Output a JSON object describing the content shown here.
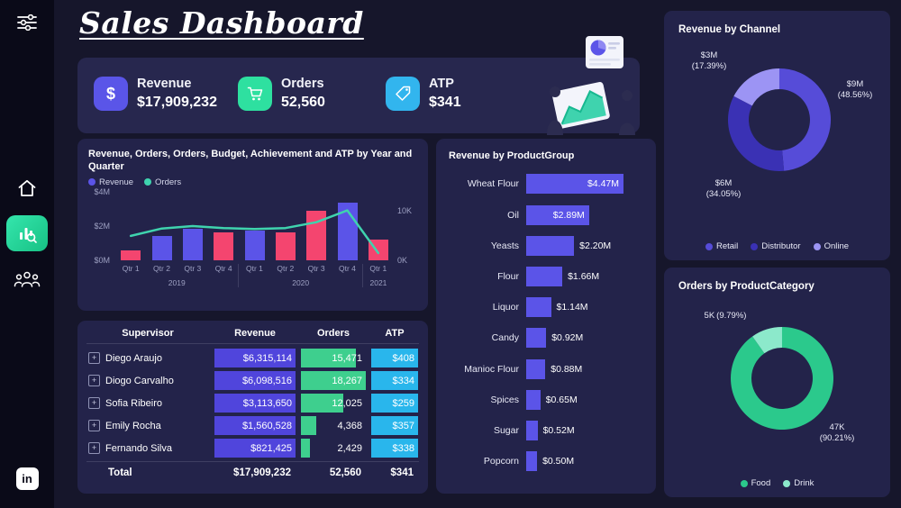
{
  "app": {
    "background": "#16162b",
    "panel": "#23234a",
    "sidebar": "#0a0a18",
    "accent_green": "#2ee0a0"
  },
  "sidebar": {
    "icons": [
      {
        "name": "filter-icon"
      },
      {
        "name": "home-icon"
      },
      {
        "name": "analytics-icon",
        "active": true
      },
      {
        "name": "users-icon"
      },
      {
        "name": "linkedin-icon",
        "label": "in"
      }
    ]
  },
  "header": {
    "title": "Sales Dashboard"
  },
  "kpis": [
    {
      "label": "Revenue",
      "value": "$17,909,232",
      "icon": "dollar-icon",
      "color": "#5a55e8"
    },
    {
      "label": "Orders",
      "value": "52,560",
      "icon": "cart-icon",
      "color": "#2ee0a0"
    },
    {
      "label": "ATP",
      "value": "$341",
      "icon": "tag-icon",
      "color": "#32b5ee"
    }
  ],
  "chart_data": [
    {
      "type": "bar",
      "subtype": "combo-bar-line",
      "title": "Revenue, Orders, Orders, Budget, Achievement and ATP by Year and Quarter",
      "categories": [
        "Qtr 1",
        "Qtr 2",
        "Qtr 3",
        "Qtr 4",
        "Qtr 1",
        "Qtr 2",
        "Qtr 3",
        "Qtr 4",
        "Qtr 1"
      ],
      "year_groups": [
        {
          "label": "2019",
          "span": 4
        },
        {
          "label": "2020",
          "span": 4
        },
        {
          "label": "2021",
          "span": 1
        }
      ],
      "series": [
        {
          "name": "Revenue",
          "type": "bar",
          "axis": "left",
          "unit": "$M",
          "legend_color": "#5b54e8",
          "values": [
            0.55,
            1.4,
            1.85,
            1.6,
            1.7,
            1.6,
            2.9,
            3.35,
            1.2
          ],
          "bar_colors": [
            "#f4456f",
            "#5b54e8",
            "#5b54e8",
            "#f4456f",
            "#5b54e8",
            "#f4456f",
            "#f4456f",
            "#5b54e8",
            "#f4456f"
          ]
        },
        {
          "name": "Orders",
          "type": "line",
          "axis": "right",
          "unit": "K",
          "legend_color": "#3fd3ae",
          "color": "#3fd3ae",
          "values": [
            5.0,
            6.5,
            7.0,
            6.6,
            6.4,
            6.6,
            7.8,
            10.2,
            1.5
          ]
        }
      ],
      "y_left": {
        "max": 4,
        "ticks": [
          {
            "label": "$4M",
            "v": 4
          },
          {
            "label": "$2M",
            "v": 2
          },
          {
            "label": "$0M",
            "v": 0
          }
        ]
      },
      "y_right": {
        "max": 14,
        "ticks": [
          {
            "label": "10K",
            "v": 10
          },
          {
            "label": "0K",
            "v": 0
          }
        ]
      }
    },
    {
      "type": "bar",
      "orientation": "horizontal",
      "title": "Revenue by ProductGroup",
      "categories": [
        "Wheat Flour",
        "Oil",
        "Yeasts",
        "Flour",
        "Liquor",
        "Candy",
        "Manioc Flour",
        "Spices",
        "Sugar",
        "Popcorn"
      ],
      "values": [
        4.47,
        2.89,
        2.2,
        1.66,
        1.14,
        0.92,
        0.88,
        0.65,
        0.52,
        0.5
      ],
      "value_labels": [
        "$4.47M",
        "$2.89M",
        "$2.20M",
        "$1.66M",
        "$1.14M",
        "$0.92M",
        "$0.88M",
        "$0.65M",
        "$0.52M",
        "$0.50M"
      ],
      "bar_color": "#5b54e8",
      "unit": "$M"
    },
    {
      "type": "pie",
      "donut": true,
      "title": "Revenue by Channel",
      "slices": [
        {
          "name": "Retail",
          "value_label": "$9M",
          "pct": 48.56,
          "pct_label": "(48.56%)",
          "color": "#564cd8"
        },
        {
          "name": "Distributor",
          "value_label": "$6M",
          "pct": 34.05,
          "pct_label": "(34.05%)",
          "color": "#3a31b4"
        },
        {
          "name": "Online",
          "value_label": "$3M",
          "pct": 17.39,
          "pct_label": "(17.39%)",
          "color": "#9c94f4"
        }
      ],
      "legend_position": "bottom"
    },
    {
      "type": "pie",
      "donut": true,
      "title": "Orders by ProductCategory",
      "slices": [
        {
          "name": "Food",
          "value_label": "47K",
          "pct": 90.21,
          "pct_label": "(90.21%)",
          "color": "#2bc98c"
        },
        {
          "name": "Drink",
          "value_label": "5K",
          "pct": 9.79,
          "pct_label": "(9.79%)",
          "color": "#8ce9cb"
        }
      ],
      "legend_position": "bottom"
    }
  ],
  "table": {
    "columns": [
      "Supervisor",
      "Revenue",
      "Orders",
      "ATP"
    ],
    "rows": [
      {
        "name": "Diego Araujo",
        "revenue": "$6,315,114",
        "orders": "15,471",
        "atp": "$408"
      },
      {
        "name": "Diogo Carvalho",
        "revenue": "$6,098,516",
        "orders": "18,267",
        "atp": "$334"
      },
      {
        "name": "Sofia Ribeiro",
        "revenue": "$3,113,650",
        "orders": "12,025",
        "atp": "$259"
      },
      {
        "name": "Emily Rocha",
        "revenue": "$1,560,528",
        "orders": "4,368",
        "atp": "$357"
      },
      {
        "name": "Fernando Silva",
        "revenue": "$821,425",
        "orders": "2,429",
        "atp": "$338"
      }
    ],
    "total": {
      "label": "Total",
      "revenue": "$17,909,232",
      "orders": "52,560",
      "atp": "$341"
    },
    "bar_colors": {
      "revenue": "#5045dc",
      "orders": "#3ecf8e",
      "atp": "#29b6ec"
    }
  }
}
